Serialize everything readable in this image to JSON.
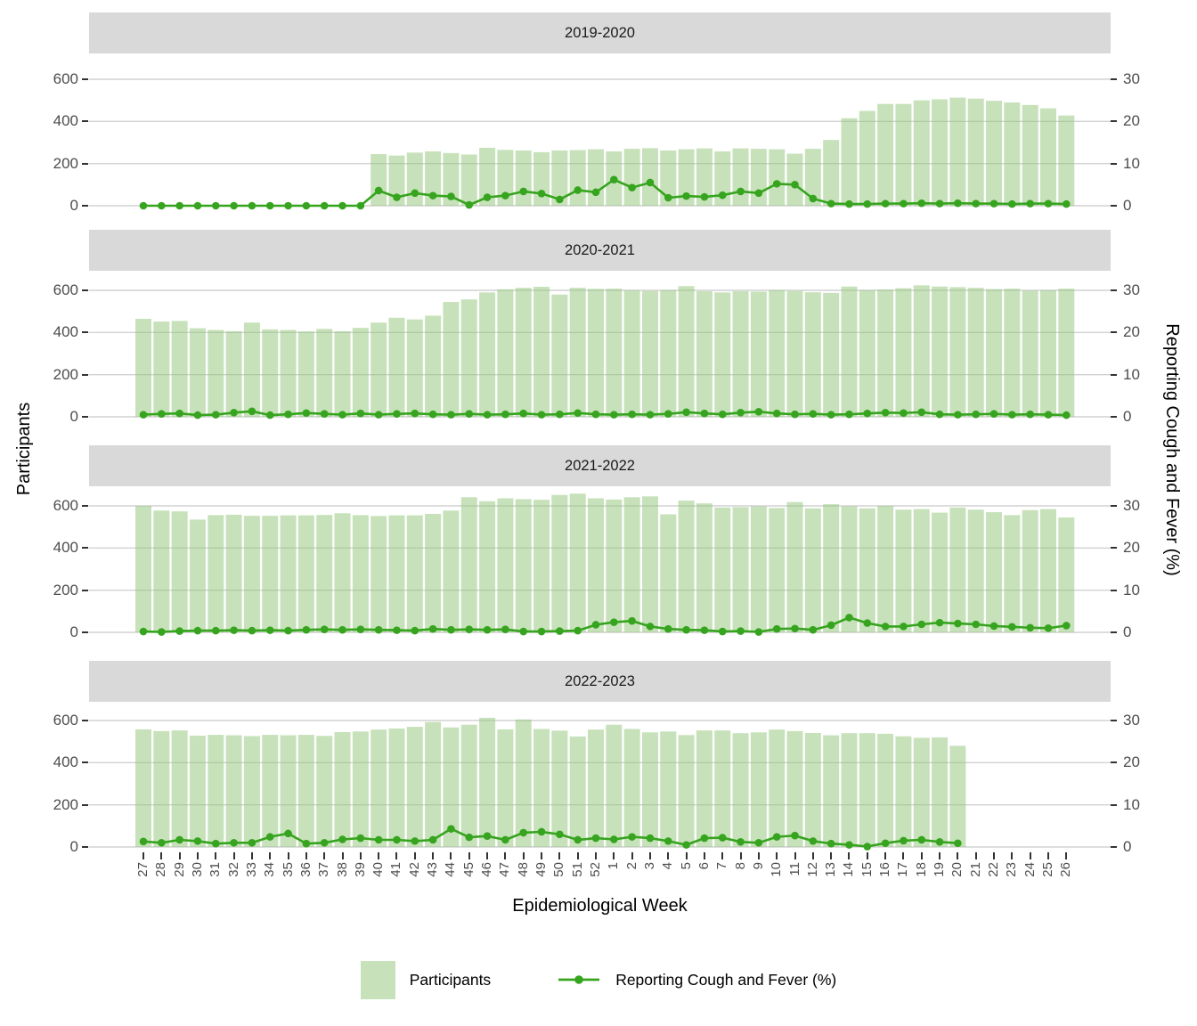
{
  "figure": {
    "y_axis_title": "Participants",
    "y2_axis_title": "Reporting Cough and Fever (%)",
    "x_axis_title": "Epidemiological Week",
    "legend": {
      "participants_label": "Participants",
      "cough_label": "Reporting Cough and Fever (%)"
    },
    "colors": {
      "bar_fill": "#c7e2ba",
      "bar_fill_rgba": "rgba(143,197,117,0.5)",
      "line_green": "#36a41e",
      "strip_bg": "#d9d9d9",
      "grid": "#d2d2d2",
      "axis_text": "#4d4d4d",
      "tick_mark": "#333333"
    }
  },
  "chart_data": {
    "type": "bar+line faceted (4 rows, shared x axis, dual y axes)",
    "title": "",
    "xlabel": "Epidemiological Week",
    "ylabel_left": "Participants",
    "ylabel_right": "Reporting Cough and Fever (%)",
    "grid": true,
    "legend_position": "bottom",
    "left_ylim": [
      0,
      650
    ],
    "right_ylim": [
      0,
      32.5
    ],
    "left_axis_tick_labels": [
      "600",
      "400",
      "200",
      "0"
    ],
    "right_axis_tick_labels": [
      "30",
      "20",
      "10",
      "0"
    ],
    "left_axis_ticks": [
      600,
      400,
      200,
      0
    ],
    "right_axis_ticks": [
      30,
      20,
      10,
      0
    ],
    "x": [
      27,
      28,
      29,
      30,
      31,
      32,
      33,
      34,
      35,
      36,
      37,
      38,
      39,
      40,
      41,
      42,
      43,
      44,
      45,
      46,
      47,
      48,
      49,
      50,
      51,
      52,
      1,
      2,
      3,
      4,
      5,
      6,
      7,
      8,
      9,
      10,
      11,
      12,
      13,
      14,
      15,
      16,
      17,
      18,
      19,
      20,
      21,
      22,
      23,
      24,
      25,
      26
    ],
    "legend_entries": [
      "Participants",
      "Reporting Cough and Fever (%)"
    ],
    "facets": [
      {
        "label": "2019-2020",
        "participants": [
          null,
          null,
          null,
          null,
          null,
          null,
          null,
          null,
          null,
          null,
          null,
          null,
          null,
          245,
          238,
          252,
          258,
          250,
          243,
          275,
          265,
          262,
          254,
          262,
          264,
          268,
          258,
          270,
          273,
          262,
          268,
          272,
          258,
          272,
          270,
          268,
          247,
          270,
          312,
          415,
          450,
          483,
          483,
          500,
          505,
          513,
          508,
          498,
          490,
          478,
          462,
          428
        ],
        "cough_fever_pct": [
          0,
          0,
          0,
          0,
          0,
          0,
          0,
          0,
          0,
          0,
          0,
          0,
          0,
          3.6,
          2.0,
          3.0,
          2.4,
          2.2,
          0.2,
          2.0,
          2.4,
          3.4,
          2.9,
          1.5,
          3.7,
          3.2,
          6.2,
          4.3,
          5.5,
          1.9,
          2.3,
          2.1,
          2.5,
          3.4,
          3.0,
          5.2,
          5.0,
          1.7,
          0.5,
          0.4,
          0.4,
          0.5,
          0.5,
          0.6,
          0.5,
          0.6,
          0.5,
          0.5,
          0.4,
          0.5,
          0.5,
          0.4
        ]
      },
      {
        "label": "2020-2021",
        "participants": [
          465,
          452,
          455,
          420,
          412,
          406,
          447,
          415,
          412,
          405,
          417,
          406,
          422,
          447,
          470,
          462,
          480,
          545,
          557,
          590,
          605,
          612,
          617,
          580,
          612,
          607,
          608,
          600,
          597,
          601,
          620,
          596,
          590,
          596,
          594,
          601,
          597,
          591,
          588,
          618,
          601,
          604,
          610,
          624,
          618,
          615,
          612,
          606,
          608,
          598,
          601,
          608
        ],
        "cough_fever_pct": [
          0.5,
          0.7,
          0.8,
          0.4,
          0.5,
          1.0,
          1.3,
          0.4,
          0.6,
          0.9,
          0.7,
          0.5,
          0.8,
          0.5,
          0.7,
          0.8,
          0.6,
          0.5,
          0.7,
          0.5,
          0.6,
          0.8,
          0.5,
          0.6,
          0.9,
          0.6,
          0.5,
          0.6,
          0.5,
          0.7,
          1.1,
          0.8,
          0.6,
          1.0,
          1.2,
          0.8,
          0.6,
          0.7,
          0.5,
          0.6,
          0.8,
          1.0,
          0.9,
          1.1,
          0.6,
          0.5,
          0.6,
          0.7,
          0.5,
          0.6,
          0.5,
          0.4
        ]
      },
      {
        "label": "2021-2022",
        "participants": [
          600,
          578,
          574,
          535,
          556,
          558,
          553,
          553,
          555,
          555,
          557,
          565,
          556,
          552,
          555,
          555,
          562,
          578,
          641,
          622,
          636,
          632,
          629,
          652,
          658,
          636,
          630,
          641,
          645,
          560,
          625,
          612,
          592,
          594,
          598,
          590,
          618,
          588,
          608,
          598,
          588,
          600,
          582,
          585,
          568,
          592,
          582,
          570,
          556,
          580,
          585,
          545
        ],
        "cough_fever_pct": [
          0.2,
          0.1,
          0.3,
          0.4,
          0.4,
          0.5,
          0.4,
          0.5,
          0.4,
          0.6,
          0.7,
          0.6,
          0.7,
          0.6,
          0.5,
          0.4,
          0.8,
          0.6,
          0.7,
          0.6,
          0.7,
          0.2,
          0.2,
          0.3,
          0.4,
          1.8,
          2.4,
          2.7,
          1.4,
          0.8,
          0.6,
          0.5,
          0.2,
          0.3,
          0.1,
          0.8,
          0.9,
          0.6,
          1.7,
          3.5,
          2.2,
          1.4,
          1.4,
          1.9,
          2.3,
          2.1,
          1.9,
          1.5,
          1.3,
          1.1,
          1.0,
          1.6
        ]
      },
      {
        "label": "2022-2023",
        "participants": [
          558,
          550,
          553,
          528,
          532,
          530,
          526,
          532,
          530,
          532,
          527,
          545,
          548,
          557,
          562,
          570,
          593,
          567,
          580,
          613,
          558,
          605,
          560,
          552,
          524,
          557,
          580,
          560,
          544,
          548,
          531,
          553,
          553,
          540,
          544,
          557,
          550,
          541,
          530,
          540,
          540,
          537,
          525,
          518,
          520,
          480,
          null,
          null,
          null,
          null,
          null,
          null
        ],
        "cough_fever_pct": [
          1.3,
          1.0,
          1.7,
          1.4,
          0.8,
          1.0,
          1.0,
          2.4,
          3.2,
          0.8,
          1.0,
          1.8,
          2.1,
          1.7,
          1.7,
          1.4,
          1.7,
          4.3,
          2.3,
          2.6,
          1.7,
          3.4,
          3.6,
          3.0,
          1.7,
          2.1,
          1.8,
          2.4,
          2.1,
          1.4,
          0.5,
          2.1,
          2.2,
          1.2,
          1.0,
          2.4,
          2.7,
          1.4,
          0.8,
          0.5,
          0.1,
          0.9,
          1.5,
          1.7,
          1.2,
          0.9,
          null,
          null,
          null,
          null,
          null,
          null
        ]
      }
    ]
  }
}
